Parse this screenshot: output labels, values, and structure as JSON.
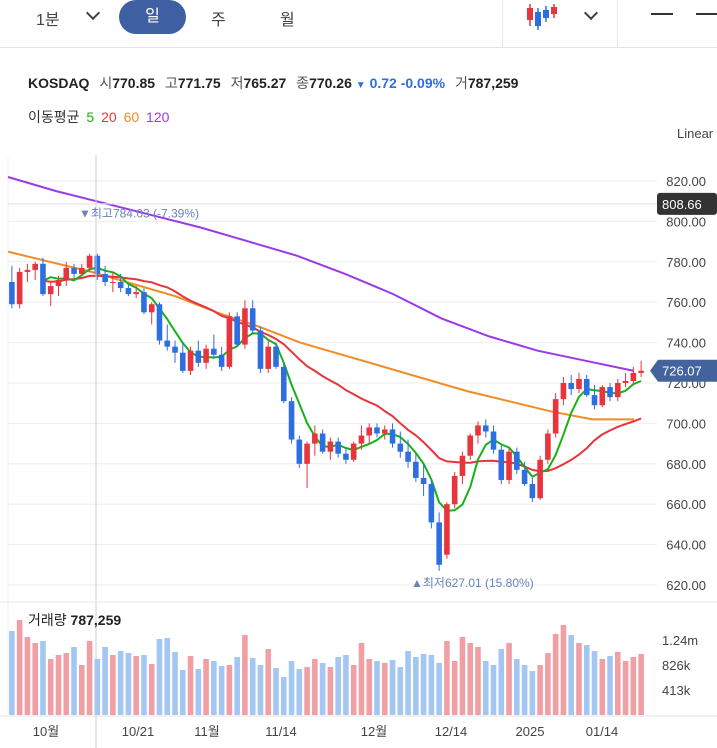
{
  "toolbar": {
    "interval": "1분",
    "tabs": [
      "일",
      "주",
      "월"
    ],
    "active_tab": "일"
  },
  "quote": {
    "symbol": "KOSDAQ",
    "open_label": "시",
    "open": "770.85",
    "high_label": "고",
    "high": "771.75",
    "low_label": "저",
    "low": "765.27",
    "close_label": "종",
    "close": "770.26",
    "change_arrow": "▼",
    "change": "0.72",
    "change_pct": "-0.09%",
    "volume_label": "거",
    "volume": "787,259"
  },
  "moving_average": {
    "label": "이동평균",
    "periods": [
      "5",
      "20",
      "60",
      "120"
    ],
    "colors": [
      "#17b217",
      "#e8343c",
      "#f08c24",
      "#9b39e8"
    ]
  },
  "scale_label": "Linear",
  "colors": {
    "up": "#e8343c",
    "down": "#2d6fe0",
    "up_vol": "#f0a0a4",
    "down_vol": "#a4c6f2",
    "accent": "#3f5fa3",
    "crosshair_badge": "#333333",
    "last_badge": "#44639c"
  },
  "chart_data": {
    "type": "candlestick",
    "y_axis": {
      "min": 615,
      "max": 832,
      "ticks": [
        "820.00",
        "800.00",
        "780.00",
        "760.00",
        "740.00",
        "720.00",
        "700.00",
        "680.00",
        "660.00",
        "640.00",
        "620.00"
      ]
    },
    "x_ticks": [
      "10월",
      "10/21",
      "11월",
      "11/14",
      "12월",
      "12/14",
      "2025",
      "01/14"
    ],
    "crosshair_value": "808.66",
    "last_value": "726.07",
    "max_marker": {
      "label": "▼최고",
      "value": "784.03",
      "pct": "(-7.39%)"
    },
    "min_marker": {
      "label": "▲최저",
      "value": "627.01",
      "pct": "(15.80%)"
    },
    "volume": {
      "title": "거래량",
      "value": "787,259",
      "ticks": [
        "1.24m",
        "826k",
        "413k"
      ]
    },
    "candles": [
      [
        770.0,
        778.0,
        757.0,
        759.0
      ],
      [
        759.0,
        777.0,
        757.0,
        775.0
      ],
      [
        775.0,
        779.0,
        770.0,
        776.0
      ],
      [
        776.0,
        780.0,
        771.0,
        779.0
      ],
      [
        779.0,
        782.0,
        763.0,
        764.0
      ],
      [
        764.0,
        770.0,
        758.0,
        768.0
      ],
      [
        768.0,
        773.0,
        763.0,
        771.0
      ],
      [
        771.0,
        780.0,
        768.0,
        777.0
      ],
      [
        777.0,
        779.0,
        772.0,
        774.0
      ],
      [
        774.0,
        779.0,
        773.0,
        777.0
      ],
      [
        777.0,
        784.0,
        775.0,
        783.0
      ],
      [
        783.0,
        784.0,
        771.0,
        774.0
      ],
      [
        774.0,
        778.0,
        768.0,
        770.0
      ],
      [
        770.0,
        775.0,
        765.0,
        770.0
      ],
      [
        770.0,
        774.0,
        765.0,
        767.0
      ],
      [
        767.0,
        769.0,
        763.0,
        764.0
      ],
      [
        764.0,
        768.0,
        762.0,
        765.0
      ],
      [
        765.0,
        767.0,
        754.0,
        755.0
      ],
      [
        755.0,
        760.0,
        749.0,
        759.0
      ],
      [
        759.0,
        760.0,
        739.0,
        741.0
      ],
      [
        741.0,
        749.0,
        736.0,
        738.0
      ],
      [
        738.0,
        741.0,
        730.0,
        735.0
      ],
      [
        735.0,
        740.0,
        725.0,
        726.0
      ],
      [
        726.0,
        738.0,
        724.0,
        736.0
      ],
      [
        736.0,
        741.0,
        728.0,
        730.0
      ],
      [
        730.0,
        739.0,
        727.0,
        737.0
      ],
      [
        737.0,
        744.0,
        732.0,
        734.0
      ],
      [
        734.0,
        738.0,
        726.0,
        728.0
      ],
      [
        728.0,
        755.0,
        727.0,
        753.0
      ],
      [
        753.0,
        755.0,
        738.0,
        739.0
      ],
      [
        739.0,
        761.0,
        737.0,
        757.0
      ],
      [
        757.0,
        761.0,
        744.0,
        746.0
      ],
      [
        746.0,
        748.0,
        725.0,
        727.0
      ],
      [
        727.0,
        741.0,
        725.0,
        738.0
      ],
      [
        738.0,
        740.0,
        727.0,
        728.0
      ],
      [
        728.0,
        730.0,
        710.0,
        711.0
      ],
      [
        711.0,
        713.0,
        690.0,
        692.0
      ],
      [
        692.0,
        694.0,
        678.0,
        680.0
      ],
      [
        680.0,
        691.0,
        668.0,
        690.0
      ],
      [
        690.0,
        699.0,
        684.0,
        695.0
      ],
      [
        695.0,
        697.0,
        685.0,
        686.0
      ],
      [
        686.0,
        693.0,
        682.0,
        691.0
      ],
      [
        691.0,
        693.0,
        683.0,
        685.0
      ],
      [
        685.0,
        688.0,
        680.0,
        682.0
      ],
      [
        682.0,
        691.0,
        681.0,
        690.0
      ],
      [
        690.0,
        699.0,
        687.0,
        694.0
      ],
      [
        694.0,
        700.0,
        690.0,
        698.0
      ],
      [
        698.0,
        700.0,
        693.0,
        695.0
      ],
      [
        695.0,
        699.0,
        692.0,
        697.0
      ],
      [
        697.0,
        700.0,
        688.0,
        690.0
      ],
      [
        690.0,
        696.0,
        683.0,
        686.0
      ],
      [
        686.0,
        692.0,
        678.0,
        681.0
      ],
      [
        681.0,
        685.0,
        671.0,
        673.0
      ],
      [
        673.0,
        680.0,
        664.0,
        670.0
      ],
      [
        670.0,
        672.0,
        648.0,
        651.0
      ],
      [
        651.0,
        656.0,
        627.0,
        630.0
      ],
      [
        635.0,
        661.0,
        633.0,
        660.0
      ],
      [
        660.0,
        676.0,
        658.0,
        674.0
      ],
      [
        674.0,
        686.0,
        670.0,
        684.0
      ],
      [
        684.0,
        695.0,
        682.0,
        694.0
      ],
      [
        694.0,
        701.0,
        690.0,
        699.0
      ],
      [
        699.0,
        702.0,
        693.0,
        696.0
      ],
      [
        696.0,
        699.0,
        685.0,
        687.0
      ],
      [
        687.0,
        689.0,
        670.0,
        672.0
      ],
      [
        672.0,
        688.0,
        670.0,
        686.0
      ],
      [
        686.0,
        688.0,
        675.0,
        677.0
      ],
      [
        677.0,
        681.0,
        669.0,
        670.0
      ],
      [
        670.0,
        673.0,
        661.0,
        663.0
      ],
      [
        663.0,
        684.0,
        662.0,
        682.0
      ],
      [
        682.0,
        697.0,
        680.0,
        695.0
      ],
      [
        695.0,
        715.0,
        693.0,
        712.0
      ],
      [
        712.0,
        723.0,
        709.0,
        720.0
      ],
      [
        720.0,
        724.0,
        714.0,
        717.0
      ],
      [
        717.0,
        725.0,
        715.0,
        722.0
      ],
      [
        722.0,
        724.0,
        713.0,
        714.0
      ],
      [
        714.0,
        719.0,
        707.0,
        709.0
      ],
      [
        709.0,
        719.0,
        708.0,
        718.0
      ],
      [
        718.0,
        720.0,
        711.0,
        713.0
      ],
      [
        713.0,
        722.0,
        711.0,
        720.0
      ],
      [
        720.0,
        725.0,
        718.0,
        721.0
      ],
      [
        721.0,
        728.0,
        719.0,
        725.0
      ],
      [
        725.0,
        731.0,
        723.0,
        726.07
      ]
    ],
    "volumes": [
      0.84,
      0.95,
      0.78,
      0.72,
      0.74,
      0.56,
      0.6,
      0.62,
      0.68,
      0.5,
      0.74,
      0.56,
      0.68,
      0.6,
      0.64,
      0.62,
      0.59,
      0.6,
      0.51,
      0.76,
      0.77,
      0.63,
      0.45,
      0.59,
      0.46,
      0.56,
      0.54,
      0.49,
      0.5,
      0.58,
      0.8,
      0.57,
      0.5,
      0.66,
      0.47,
      0.38,
      0.54,
      0.46,
      0.48,
      0.56,
      0.52,
      0.48,
      0.58,
      0.6,
      0.5,
      0.72,
      0.56,
      0.54,
      0.52,
      0.55,
      0.48,
      0.64,
      0.58,
      0.61,
      0.6,
      0.52,
      0.74,
      0.54,
      0.78,
      0.72,
      0.68,
      0.54,
      0.5,
      0.66,
      0.72,
      0.56,
      0.5,
      0.44,
      0.5,
      0.62,
      0.81,
      0.9,
      0.8,
      0.72,
      0.7,
      0.64,
      0.56,
      0.59,
      0.63,
      0.54,
      0.58,
      0.61
    ]
  }
}
